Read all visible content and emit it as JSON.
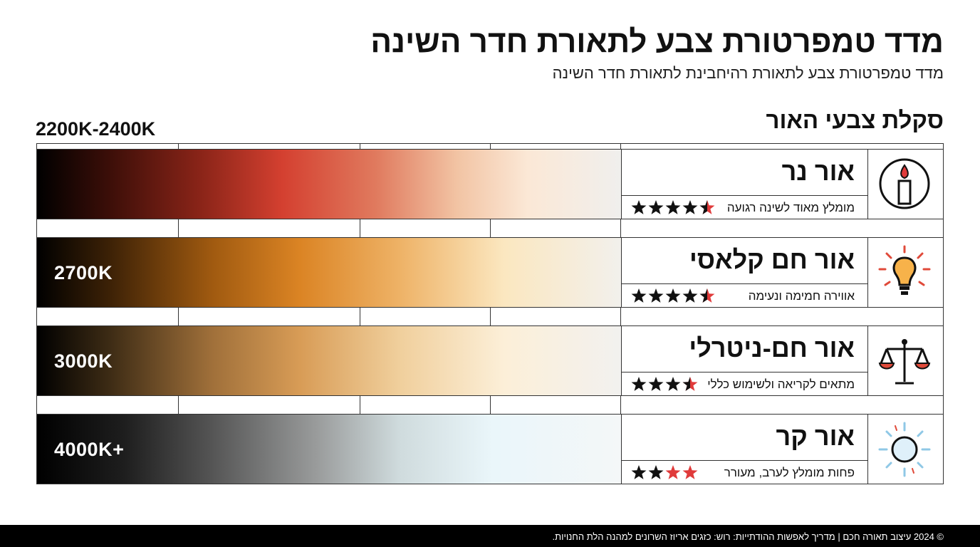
{
  "header": {
    "title": "מדד טמפרטורת צבע לתאורת חדר השינה",
    "subtitle": "מדד טמפרטורת צבע לתאורת רהיחבינת לתאורת חדר השינה"
  },
  "section_title": "סקלת צבעי האור",
  "rows": [
    {
      "kelvin": "2200K-2400K",
      "name": "אור נר",
      "description": "מומלץ מאוד לשינה רגועה",
      "rating": 4.5,
      "out_of": 5
    },
    {
      "kelvin": "2700K",
      "name": "אור חם קלאסי",
      "description": "אווירה חמימה ונעימה",
      "rating": 4.5,
      "out_of": 5
    },
    {
      "kelvin": "3000K",
      "name": "אור חם-ניטרלי",
      "description": "מתאים לקריאה ולשימוש כללי",
      "rating": 3.5,
      "out_of": 4
    },
    {
      "kelvin": "4000K+",
      "name": "אור קר",
      "description": "פחות מומלץ לערב, מעורר",
      "rating": 2,
      "out_of": 4
    }
  ],
  "footer": "© 2024 עיצוב תאורה חכם | מדריך לאפשות ההודתייות: רוש: כזגים אריוז השרונים למהנה הלת החנויות."
}
